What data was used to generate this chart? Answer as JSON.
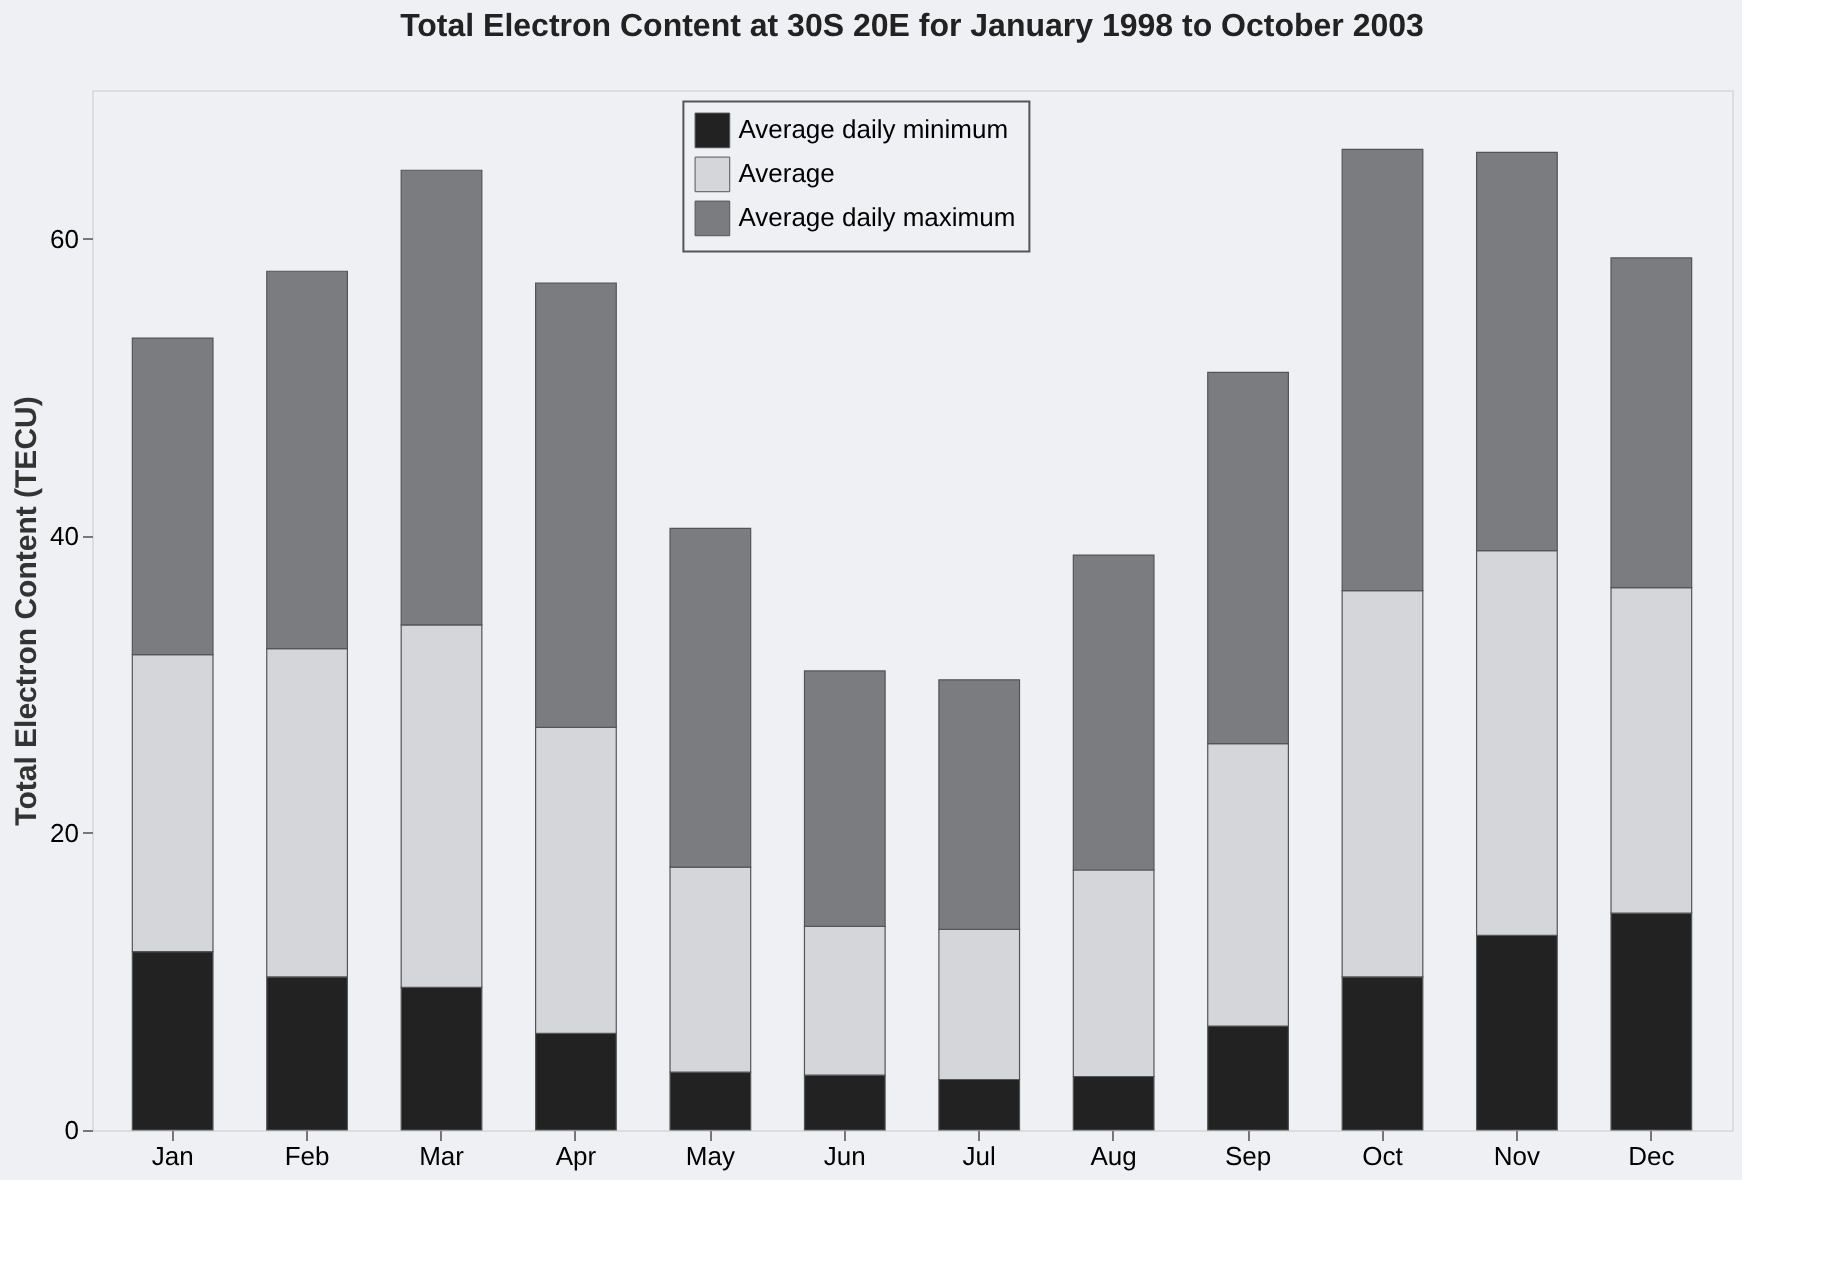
{
  "chart_data": {
    "type": "bar",
    "stacked": true,
    "title": "Total Electron Content at 30S 20E for January 1998 to October 2003",
    "ylabel": "Total Electron Content (TECU)",
    "categories": [
      "Jan",
      "Feb",
      "Mar",
      "Apr",
      "May",
      "Jun",
      "Jul",
      "Aug",
      "Sep",
      "Oct",
      "Nov",
      "Dec"
    ],
    "series": [
      {
        "name": "Average daily minimum",
        "color": "#222222",
        "values": [
          12,
          10.3,
          9.6,
          6.5,
          3.9,
          3.7,
          3.4,
          3.6,
          7,
          10.3,
          13.1,
          14.6
        ]
      },
      {
        "name": "Average",
        "color": "#d4d6da",
        "values": [
          20,
          22.1,
          24.4,
          20.6,
          13.8,
          10,
          10.1,
          13.9,
          19,
          26,
          25.9,
          21.9
        ]
      },
      {
        "name": "Average daily maximum",
        "color": "#7a7c80",
        "values": [
          21.3,
          25.4,
          30.6,
          29.9,
          22.8,
          17.2,
          16.8,
          21.2,
          25,
          29.7,
          26.8,
          22.2
        ]
      }
    ],
    "ylim": [
      0,
      70
    ],
    "yticks": [
      0,
      20,
      40,
      60
    ],
    "grid": false,
    "legend": "top right"
  }
}
